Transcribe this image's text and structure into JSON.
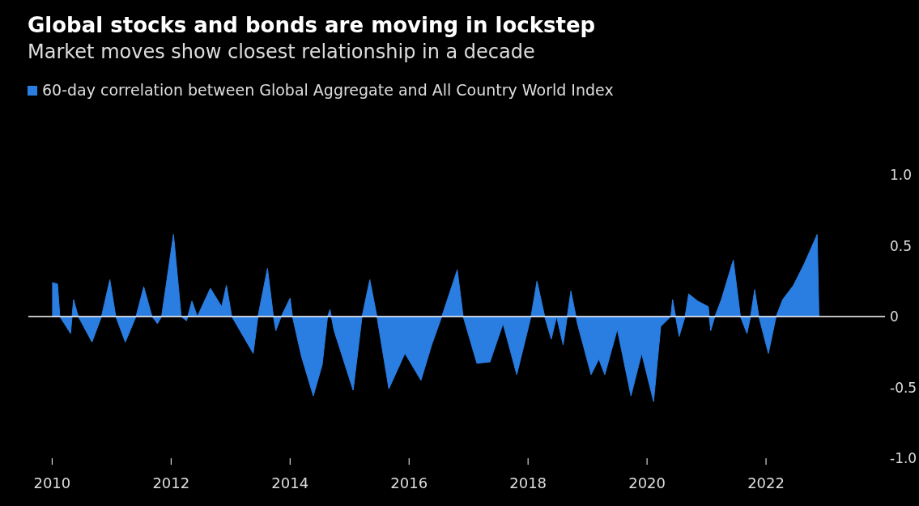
{
  "chart_data": {
    "type": "area",
    "title": "Global stocks and bonds are moving in lockstep",
    "subtitle": "Market moves show closest relationship in a decade",
    "x": [
      2010.0,
      2010.09,
      2010.13,
      2010.31,
      2010.36,
      2010.44,
      2010.67,
      2010.83,
      2010.97,
      2011.07,
      2011.23,
      2011.41,
      2011.54,
      2011.68,
      2011.77,
      2011.84,
      2012.04,
      2012.17,
      2012.26,
      2012.35,
      2012.44,
      2012.66,
      2012.85,
      2012.93,
      2013.02,
      2013.38,
      2013.46,
      2013.62,
      2013.72,
      2013.76,
      2013.85,
      2014.0,
      2014.04,
      2014.19,
      2014.39,
      2014.54,
      2014.63,
      2014.67,
      2014.74,
      2015.06,
      2015.21,
      2015.34,
      2015.46,
      2015.66,
      2015.93,
      2016.2,
      2016.38,
      2016.55,
      2016.81,
      2016.91,
      2017.14,
      2017.36,
      2017.58,
      2017.81,
      2018.05,
      2018.15,
      2018.28,
      2018.39,
      2018.48,
      2018.59,
      2018.72,
      2018.83,
      2019.06,
      2019.19,
      2019.29,
      2019.5,
      2019.73,
      2019.91,
      2020.11,
      2020.23,
      2020.4,
      2020.43,
      2020.54,
      2020.64,
      2020.7,
      2020.85,
      2021.03,
      2021.07,
      2021.14,
      2021.25,
      2021.45,
      2021.57,
      2021.68,
      2021.74,
      2021.81,
      2021.88,
      2022.04,
      2022.17,
      2022.28,
      2022.46,
      2022.64,
      2022.86,
      2022.89
    ],
    "series": [
      {
        "name": "60-day correlation between Global Aggregate and All Country World Index",
        "color": "#2a7de1",
        "values": [
          0.24,
          0.23,
          0,
          -0.12,
          0.12,
          0,
          -0.18,
          0,
          0.26,
          0,
          -0.18,
          0,
          0.21,
          0,
          -0.05,
          0,
          0.58,
          0,
          -0.03,
          0.11,
          0,
          0.2,
          0.07,
          0.22,
          0,
          -0.26,
          0,
          0.34,
          0,
          -0.1,
          0,
          0.13,
          0,
          -0.28,
          -0.56,
          -0.34,
          0,
          0.05,
          -0.1,
          -0.52,
          0,
          0.26,
          0,
          -0.51,
          -0.26,
          -0.45,
          -0.2,
          0,
          0.33,
          0,
          -0.33,
          -0.32,
          -0.05,
          -0.41,
          0,
          0.25,
          0,
          -0.16,
          0,
          -0.2,
          0.18,
          -0.05,
          -0.41,
          -0.3,
          -0.41,
          -0.09,
          -0.56,
          -0.26,
          -0.6,
          -0.07,
          0,
          0.12,
          -0.14,
          0,
          0.16,
          0.11,
          0.07,
          -0.1,
          0,
          0.12,
          0.4,
          0,
          -0.12,
          0,
          0.19,
          0,
          -0.26,
          0,
          0.12,
          0.22,
          0.37,
          0.58,
          0
        ]
      }
    ],
    "xlim": [
      2009.6,
      2024
    ],
    "xticks": [
      2010,
      2012,
      2014,
      2016,
      2018,
      2020,
      2022
    ],
    "ylim": [
      -1,
      1
    ],
    "yticks": [
      {
        "value": 1,
        "label": "1.0"
      },
      0.5,
      0,
      -0.5,
      {
        "value": -1,
        "label": "-1.0"
      }
    ],
    "ref_lines": [
      {
        "axis": "y",
        "value": 0,
        "color": "#ffffff"
      }
    ],
    "legend": "top"
  }
}
